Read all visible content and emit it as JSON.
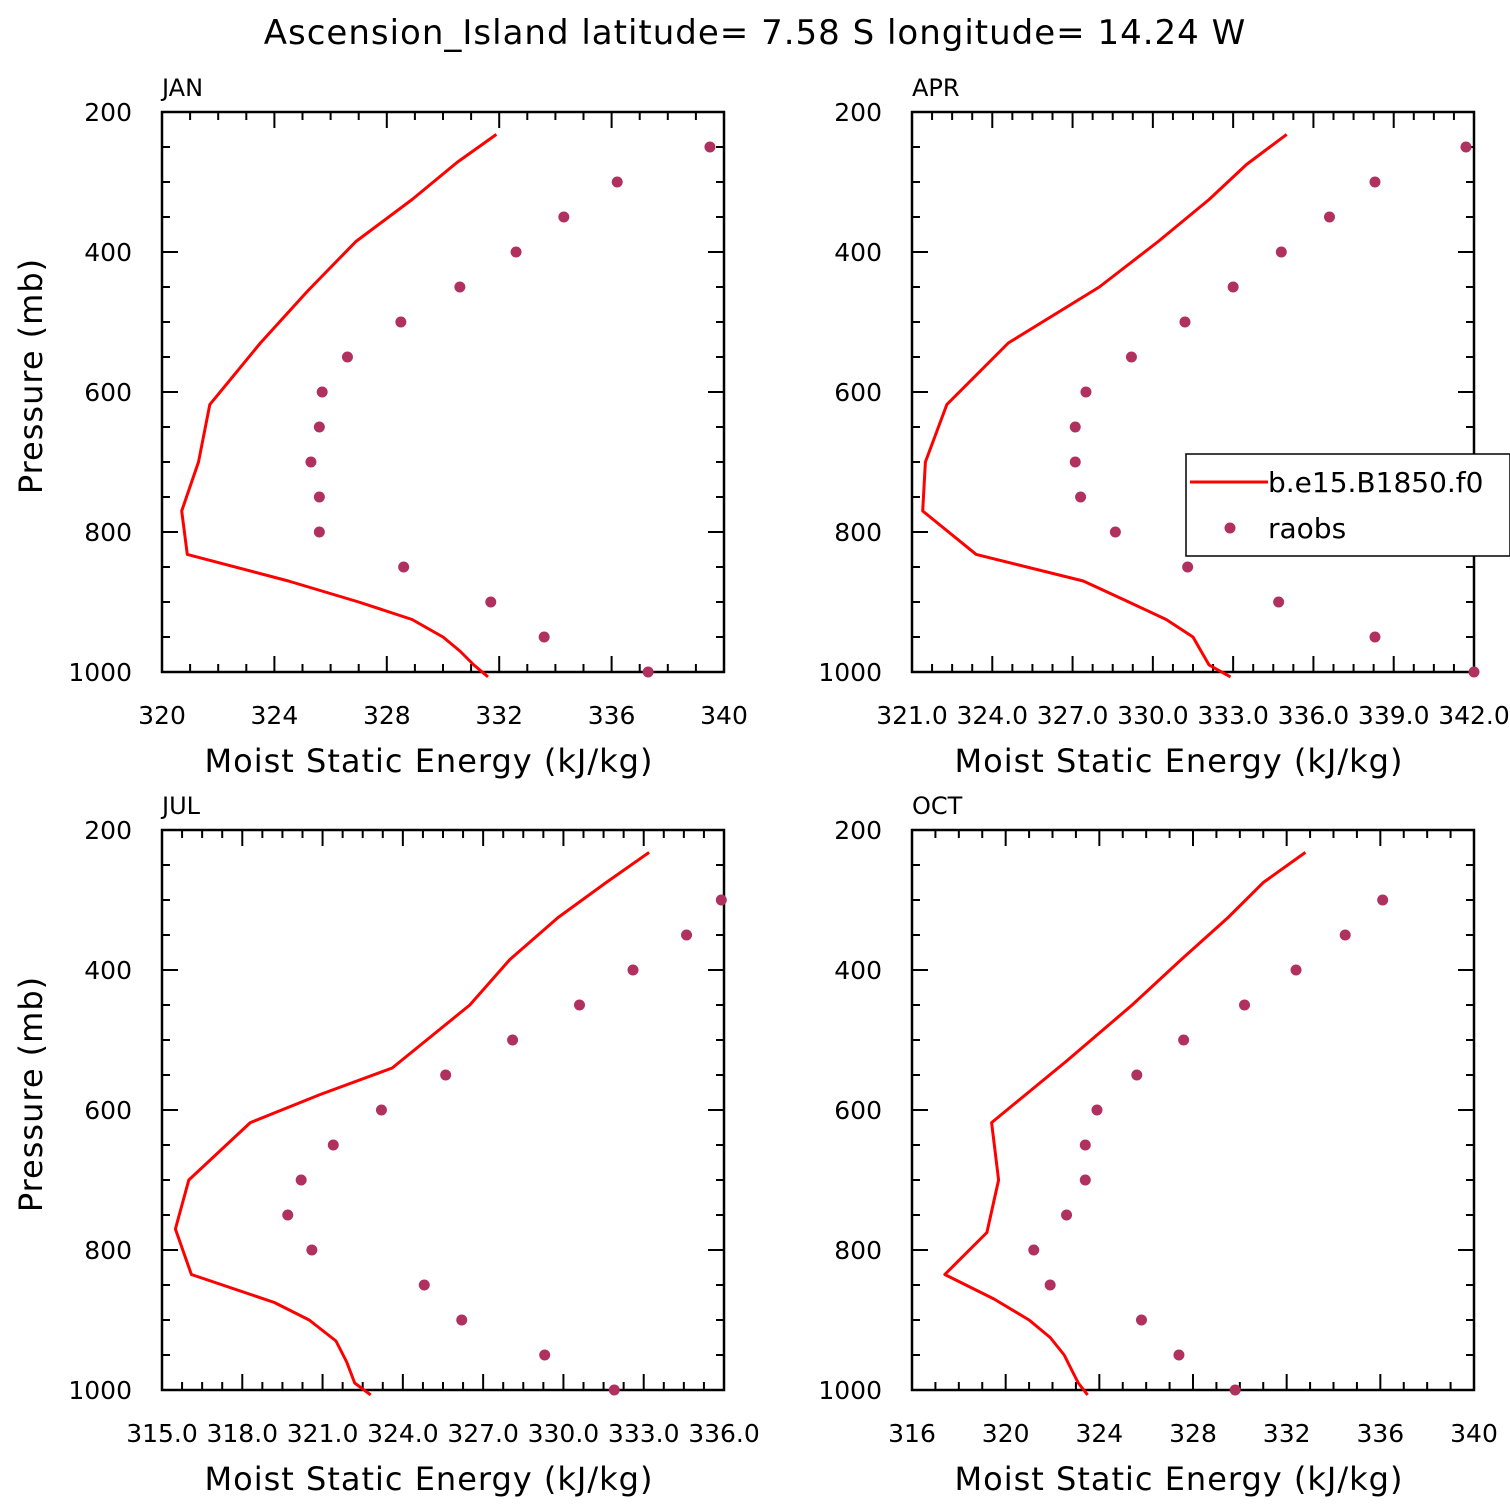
{
  "title": "Ascension_Island  latitude= 7.58 S longitude= 14.24 W",
  "colors": {
    "model": "#ff0000",
    "obs": "#b03060"
  },
  "legend": {
    "model_label": "b.e15.B1850.f0",
    "obs_label": "raobs",
    "panel": 1
  },
  "chart_data": [
    {
      "type": "line",
      "panel": "JAN",
      "xlabel": "Moist Static Energy (kJ/kg)",
      "ylabel": "Pressure (mb)",
      "xlim": [
        320,
        340
      ],
      "xticks": [
        320,
        324,
        328,
        332,
        336,
        340
      ],
      "xtick_labels": [
        "320",
        "324",
        "328",
        "332",
        "336",
        "340"
      ],
      "ylim": [
        1000,
        200
      ],
      "yticks": [
        200,
        400,
        600,
        800,
        1000
      ],
      "ytick_labels": [
        "200",
        "400",
        "600",
        "800",
        "1000"
      ],
      "series": [
        {
          "kind": "line",
          "x": [
            331.9,
            330.5,
            328.9,
            326.9,
            325.2,
            323.5,
            321.7,
            321.3,
            320.7,
            320.9,
            324.5,
            327.0,
            328.9,
            330.0,
            330.6,
            331.1,
            331.6
          ],
          "y": [
            232,
            272,
            325,
            385,
            455,
            530,
            618,
            700,
            770,
            832,
            870,
            900,
            925,
            950,
            970,
            990,
            1007
          ]
        },
        {
          "kind": "scatter",
          "x": [
            339.5,
            336.2,
            334.3,
            332.6,
            330.6,
            328.5,
            326.6,
            325.7,
            325.6,
            325.3,
            325.6,
            325.6,
            328.6,
            331.7,
            333.6,
            337.3
          ],
          "y": [
            250,
            300,
            350,
            400,
            450,
            500,
            550,
            600,
            650,
            700,
            750,
            800,
            850,
            900,
            950,
            1000
          ]
        }
      ]
    },
    {
      "type": "line",
      "panel": "APR",
      "xlabel": "Moist Static Energy (kJ/kg)",
      "ylabel": "",
      "xlim": [
        321,
        342
      ],
      "xticks": [
        321,
        324,
        327,
        330,
        333,
        336,
        339,
        342
      ],
      "xtick_labels": [
        "321.0",
        "324.0",
        "327.0",
        "330.0",
        "333.0",
        "336.0",
        "339.0",
        "342.0"
      ],
      "ylim": [
        1000,
        200
      ],
      "yticks": [
        200,
        400,
        600,
        800,
        1000
      ],
      "ytick_labels": [
        "200",
        "400",
        "600",
        "800",
        "1000"
      ],
      "series": [
        {
          "kind": "line",
          "x": [
            335.0,
            333.5,
            332.1,
            330.2,
            328.0,
            324.6,
            322.3,
            321.5,
            321.4,
            323.4,
            327.4,
            329.1,
            330.5,
            331.5,
            331.8,
            332.1,
            332.9
          ],
          "y": [
            232,
            275,
            325,
            385,
            450,
            530,
            618,
            700,
            770,
            832,
            870,
            900,
            925,
            950,
            970,
            990,
            1007
          ]
        },
        {
          "kind": "scatter",
          "x": [
            341.7,
            338.3,
            336.6,
            334.8,
            333.0,
            331.2,
            329.2,
            327.5,
            327.1,
            327.1,
            327.3,
            328.6,
            331.3,
            334.7,
            338.3,
            342.0
          ],
          "y": [
            250,
            300,
            350,
            400,
            450,
            500,
            550,
            600,
            650,
            700,
            750,
            800,
            850,
            900,
            950,
            1000
          ]
        }
      ]
    },
    {
      "type": "line",
      "panel": "JUL",
      "xlabel": "Moist Static Energy (kJ/kg)",
      "ylabel": "Pressure (mb)",
      "xlim": [
        315,
        336
      ],
      "xticks": [
        315,
        318,
        321,
        324,
        327,
        330,
        333,
        336
      ],
      "xtick_labels": [
        "315.0",
        "318.0",
        "321.0",
        "324.0",
        "327.0",
        "330.0",
        "333.0",
        "336.0"
      ],
      "ylim": [
        1000,
        200
      ],
      "yticks": [
        200,
        400,
        600,
        800,
        1000
      ],
      "ytick_labels": [
        "200",
        "400",
        "600",
        "800",
        "1000"
      ],
      "series": [
        {
          "kind": "line",
          "x": [
            333.2,
            331.6,
            329.8,
            328.0,
            326.5,
            323.6,
            320.9,
            318.3,
            316.0,
            315.5,
            316.1,
            319.2,
            320.5,
            321.5,
            321.9,
            322.2,
            322.8
          ],
          "y": [
            232,
            275,
            325,
            385,
            450,
            540,
            578,
            618,
            700,
            770,
            835,
            875,
            900,
            930,
            960,
            990,
            1007
          ]
        },
        {
          "kind": "scatter",
          "x": [
            335.9,
            334.6,
            332.6,
            330.6,
            328.1,
            325.6,
            323.2,
            321.4,
            320.2,
            319.7,
            320.6,
            324.8,
            326.2,
            329.3,
            331.9
          ],
          "y": [
            300,
            350,
            400,
            450,
            500,
            550,
            600,
            650,
            700,
            750,
            800,
            850,
            900,
            950,
            1000
          ]
        }
      ]
    },
    {
      "type": "line",
      "panel": "OCT",
      "xlabel": "Moist Static Energy (kJ/kg)",
      "ylabel": "",
      "xlim": [
        316,
        340
      ],
      "xticks": [
        316,
        320,
        324,
        328,
        332,
        336,
        340
      ],
      "xtick_labels": [
        "316",
        "320",
        "324",
        "328",
        "332",
        "336",
        "340"
      ],
      "ylim": [
        1000,
        200
      ],
      "yticks": [
        200,
        400,
        600,
        800,
        1000
      ],
      "ytick_labels": [
        "200",
        "400",
        "600",
        "800",
        "1000"
      ],
      "series": [
        {
          "kind": "line",
          "x": [
            332.8,
            331.0,
            329.5,
            327.5,
            325.4,
            322.6,
            319.4,
            319.7,
            319.2,
            317.4,
            319.5,
            321.0,
            321.9,
            322.5,
            322.8,
            323.1,
            323.5
          ],
          "y": [
            232,
            275,
            325,
            385,
            450,
            530,
            618,
            700,
            775,
            835,
            870,
            900,
            925,
            950,
            970,
            990,
            1007
          ]
        },
        {
          "kind": "scatter",
          "x": [
            336.1,
            334.5,
            332.4,
            330.2,
            327.6,
            325.6,
            323.9,
            323.4,
            323.4,
            322.6,
            321.2,
            321.9,
            325.8,
            327.4,
            329.8
          ],
          "y": [
            300,
            350,
            400,
            450,
            500,
            550,
            600,
            650,
            700,
            750,
            800,
            850,
            900,
            950,
            1000
          ]
        }
      ]
    }
  ]
}
